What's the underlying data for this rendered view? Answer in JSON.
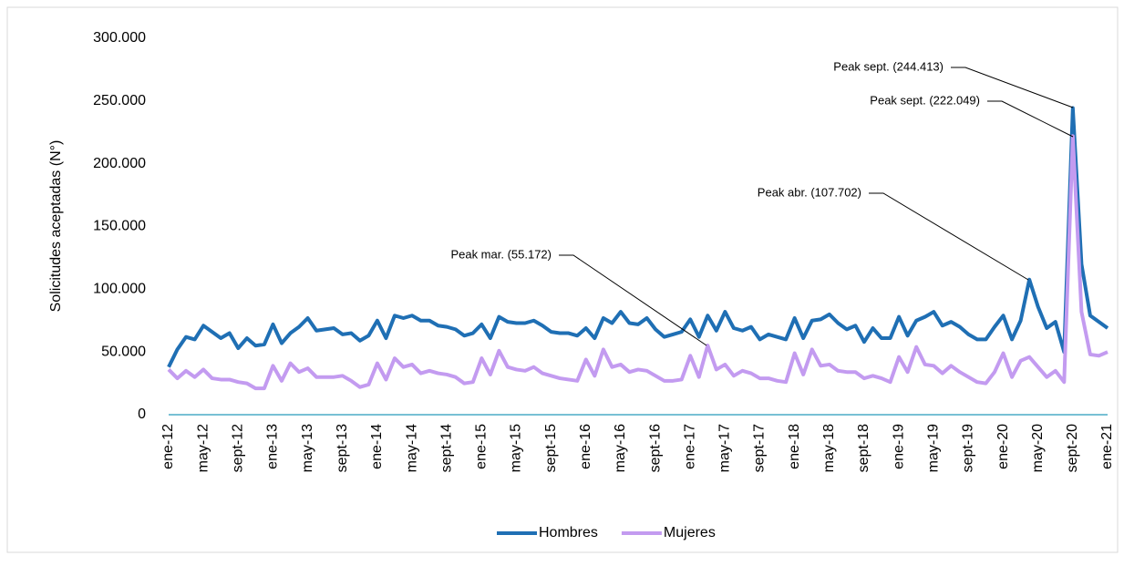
{
  "chart_data": {
    "type": "line",
    "y_label": "Solicitudes aceptadas (N°)",
    "categories": [
      "ene-12",
      null,
      null,
      null,
      "may-12",
      null,
      null,
      null,
      "sept-12",
      null,
      null,
      null,
      "ene-13",
      null,
      null,
      null,
      "may-13",
      null,
      null,
      null,
      "sept-13",
      null,
      null,
      null,
      "ene-14",
      null,
      null,
      null,
      "may-14",
      null,
      null,
      null,
      "sept-14",
      null,
      null,
      null,
      "ene-15",
      null,
      null,
      null,
      "may-15",
      null,
      null,
      null,
      "sept-15",
      null,
      null,
      null,
      "ene-16",
      null,
      null,
      null,
      "may-16",
      null,
      null,
      null,
      "sept-16",
      null,
      null,
      null,
      "ene-17",
      null,
      null,
      null,
      "may-17",
      null,
      null,
      null,
      "sept-17",
      null,
      null,
      null,
      "ene-18",
      null,
      null,
      null,
      "may-18",
      null,
      null,
      null,
      "sept-18",
      null,
      null,
      null,
      "ene-19",
      null,
      null,
      null,
      "may-19",
      null,
      null,
      null,
      "sept-19",
      null,
      null,
      null,
      "ene-20",
      null,
      null,
      null,
      "may-20",
      null,
      null,
      null,
      "sept-20",
      null,
      null,
      null,
      "ene-21"
    ],
    "series": [
      {
        "name": "Hombres",
        "color": "#1f6fb4",
        "values": [
          38000,
          52000,
          62000,
          60000,
          71000,
          66000,
          61000,
          65000,
          53000,
          61000,
          55000,
          56000,
          72000,
          57000,
          65000,
          70000,
          77000,
          67000,
          68000,
          69000,
          64000,
          65000,
          59000,
          63000,
          75000,
          61000,
          79000,
          77000,
          79000,
          75000,
          75000,
          71000,
          70000,
          68000,
          63000,
          65000,
          72000,
          61000,
          78000,
          74000,
          73000,
          73000,
          75000,
          71000,
          66000,
          65000,
          65000,
          63000,
          69000,
          61000,
          77000,
          73000,
          82000,
          73000,
          72000,
          77000,
          68000,
          62000,
          64000,
          66000,
          76000,
          62000,
          79000,
          67000,
          82000,
          69000,
          67000,
          70000,
          60000,
          64000,
          62000,
          60000,
          77000,
          61000,
          75000,
          76000,
          80000,
          73000,
          68000,
          71000,
          58000,
          69000,
          61000,
          61000,
          78000,
          63000,
          75000,
          78000,
          82000,
          71000,
          74000,
          70000,
          64000,
          60000,
          60000,
          70000,
          79000,
          60000,
          75000,
          107702,
          86000,
          69000,
          74000,
          50000,
          244413,
          120000,
          79000,
          74000,
          69000
        ]
      },
      {
        "name": "Mujeres",
        "color": "#c39bf0",
        "values": [
          36000,
          29000,
          35000,
          30000,
          36000,
          29000,
          28000,
          28000,
          26000,
          25000,
          21000,
          21000,
          39000,
          27000,
          41000,
          34000,
          37000,
          30000,
          30000,
          30000,
          31000,
          27000,
          22000,
          24000,
          41000,
          28000,
          45000,
          38000,
          40000,
          33000,
          35000,
          33000,
          32000,
          30000,
          25000,
          26000,
          45000,
          32000,
          51000,
          38000,
          36000,
          35000,
          38000,
          33000,
          31000,
          29000,
          28000,
          27000,
          44000,
          31000,
          52000,
          38000,
          40000,
          34000,
          36000,
          35000,
          31000,
          27000,
          27000,
          28000,
          47000,
          30000,
          55172,
          36000,
          40000,
          31000,
          35000,
          33000,
          29000,
          29000,
          27000,
          26000,
          49000,
          32000,
          52000,
          39000,
          40000,
          35000,
          34000,
          34000,
          29000,
          31000,
          29000,
          26000,
          46000,
          34000,
          54000,
          40000,
          39000,
          33000,
          39000,
          34000,
          30000,
          26000,
          25000,
          34000,
          49000,
          30000,
          43000,
          46000,
          38000,
          30000,
          35000,
          26000,
          222049,
          82000,
          48000,
          47000,
          50000
        ]
      }
    ],
    "ylim": [
      0,
      300000
    ],
    "yticks": [
      0,
      {
        "value": 50000,
        "label": "50.000"
      },
      {
        "value": 100000,
        "label": "100.000"
      },
      {
        "value": 150000,
        "label": "150.000"
      },
      {
        "value": 200000,
        "label": "200.000"
      },
      {
        "value": 250000,
        "label": "250.000"
      },
      {
        "value": 300000,
        "label": "300.000"
      }
    ],
    "grid": false,
    "legend": "bottom",
    "annotations": [
      "Peak sept. (244.413)",
      "Peak sept. (222.049)",
      "Peak abr. (107.702)",
      "Peak mar. (55.172)"
    ]
  }
}
